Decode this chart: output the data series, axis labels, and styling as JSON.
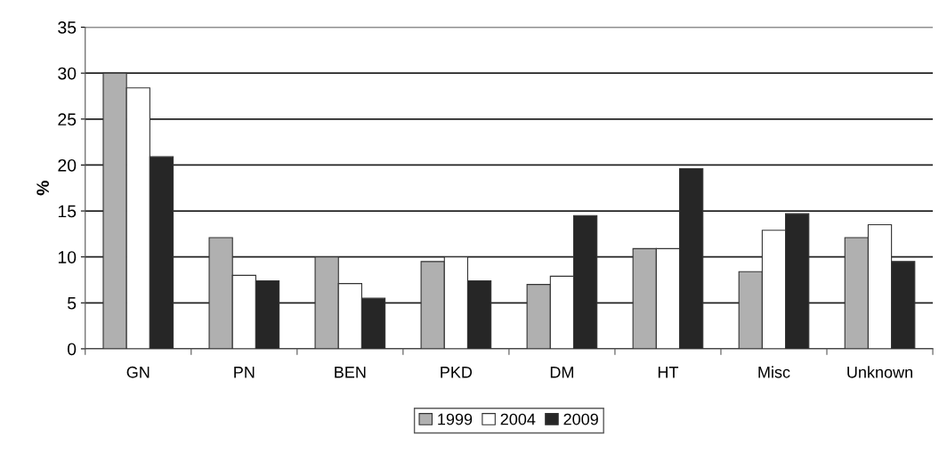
{
  "chart_data": {
    "type": "bar",
    "ylabel": "%",
    "categories": [
      "GN",
      "PN",
      "BEN",
      "PKD",
      "DM",
      "HT",
      "Misc",
      "Unknown"
    ],
    "series": [
      {
        "name": "1999",
        "color": "#b0b0b0",
        "values": [
          30,
          12.1,
          10,
          9.5,
          7.0,
          10.9,
          8.4,
          12.1
        ]
      },
      {
        "name": "2004",
        "color": "#ffffff",
        "values": [
          28.4,
          8,
          7.1,
          10,
          7.9,
          10.9,
          12.9,
          13.5
        ]
      },
      {
        "name": "2009",
        "color": "#262626",
        "values": [
          20.9,
          7.4,
          5.5,
          7.4,
          14.5,
          19.6,
          14.7,
          9.5
        ]
      }
    ],
    "ylim": [
      0,
      35
    ],
    "yticks": [
      0,
      5,
      10,
      15,
      20,
      25,
      30,
      35
    ],
    "grid": "y",
    "legend": "bottom"
  }
}
